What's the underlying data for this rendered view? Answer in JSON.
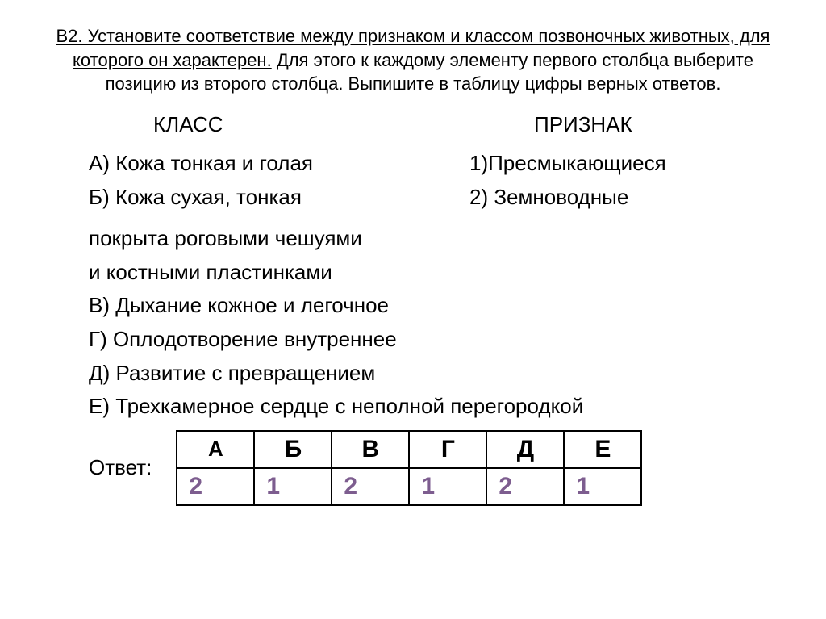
{
  "instruction": {
    "underlined": "В2. Установите соответствие между признаком и классом позвоночных животных, для которого он характерен.",
    "rest": "  Для этого к каждому элементу первого столбца выберите позицию из второго столбца. Выпишите в таблицу цифры верных ответов."
  },
  "left": {
    "header": "КЛАСС",
    "a": "А) Кожа тонкая и голая",
    "b": "Б) Кожа сухая, тонкая"
  },
  "right": {
    "header": "ПРИЗНАК",
    "i1": "1)Пресмыкающиеся",
    "i2": "2) Земноводные"
  },
  "lines": {
    "l1": "покрыта роговыми чешуями",
    "l2": "и костными пластинками",
    "l3": "В) Дыхание кожное и легочное",
    "l4": "Г) Оплодотворение внутреннее",
    "l5": "Д) Развитие с превращением",
    "l6": "Е) Трехкамерное сердце с неполной перегородкой"
  },
  "answer": {
    "label": "Ответ:",
    "headers": [
      "А",
      "Б",
      "В",
      "Г",
      "Д",
      "Е"
    ],
    "values": [
      "2",
      "1",
      "2",
      "1",
      "2",
      "1"
    ],
    "value_color": "#7d5d8f",
    "border_color": "#000000"
  },
  "style": {
    "background_color": "#ffffff",
    "text_color": "#000000",
    "body_fontsize": 26,
    "instruction_fontsize": 22,
    "table_header_fontsize": 30,
    "table_cell_width": 96,
    "table_cell_height": 46
  }
}
